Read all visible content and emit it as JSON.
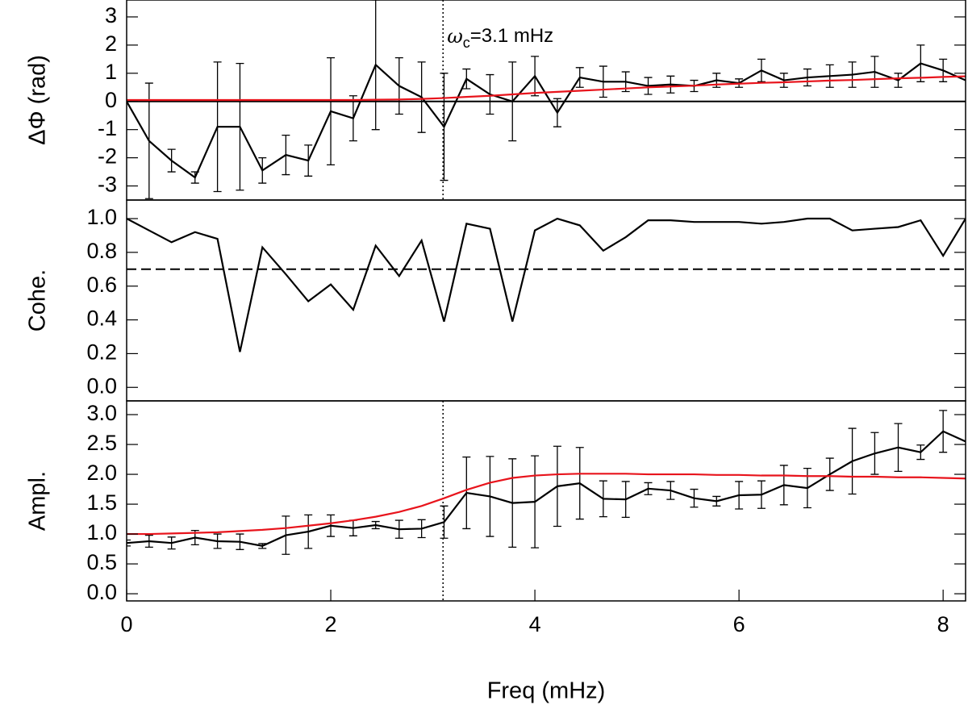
{
  "chart_data": [
    {
      "type": "line",
      "ylabel": "ΔΦ (rad)",
      "xlim": [
        0,
        8.22
      ],
      "ylim": [
        -3.5,
        3.6
      ],
      "yticks": [
        -3,
        -2,
        -1,
        0,
        1,
        2,
        3
      ],
      "hline": {
        "value": 0,
        "style": "solid"
      },
      "vline": 3.1,
      "annotation": {
        "symbol": "ω",
        "sub": "c",
        "text": "=3.1 mHz",
        "x": 3.1
      },
      "x": [
        0,
        0.22,
        0.44,
        0.67,
        0.89,
        1.11,
        1.33,
        1.56,
        1.78,
        2.0,
        2.22,
        2.44,
        2.67,
        2.89,
        3.11,
        3.33,
        3.56,
        3.78,
        4.0,
        4.22,
        4.44,
        4.67,
        4.89,
        5.11,
        5.33,
        5.56,
        5.78,
        6.0,
        6.22,
        6.44,
        6.67,
        6.89,
        7.11,
        7.33,
        7.56,
        7.78,
        8.0,
        8.22
      ],
      "series": [
        {
          "color": "#000000",
          "values": [
            0,
            -1.4,
            -2.1,
            -2.7,
            -0.9,
            -0.9,
            -2.45,
            -1.9,
            -2.1,
            -0.35,
            -0.6,
            1.3,
            0.55,
            0.15,
            -0.9,
            0.8,
            0.25,
            0,
            0.9,
            -0.4,
            0.85,
            0.7,
            0.7,
            0.55,
            0.6,
            0.55,
            0.75,
            0.65,
            1.1,
            0.75,
            0.85,
            0.9,
            0.95,
            1.05,
            0.75,
            1.35,
            1.1,
            0.75
          ],
          "errors": [
            null,
            2.05,
            0.4,
            0.2,
            2.3,
            2.25,
            0.45,
            0.7,
            0.55,
            1.9,
            0.8,
            2.3,
            1.0,
            1.25,
            1.9,
            0.35,
            0.7,
            1.4,
            0.7,
            0.5,
            0.35,
            0.55,
            0.35,
            0.3,
            0.3,
            0.2,
            0.25,
            0.15,
            0.4,
            0.25,
            0.3,
            0.4,
            0.45,
            0.55,
            0.25,
            0.65,
            0.4,
            null
          ]
        },
        {
          "color": "#e8141c",
          "values": [
            0.05,
            0.05,
            0.05,
            0.05,
            0.05,
            0.05,
            0.05,
            0.05,
            0.05,
            0.05,
            0.05,
            0.06,
            0.07,
            0.09,
            0.12,
            0.16,
            0.2,
            0.25,
            0.3,
            0.34,
            0.38,
            0.42,
            0.46,
            0.5,
            0.53,
            0.56,
            0.6,
            0.63,
            0.66,
            0.68,
            0.71,
            0.74,
            0.76,
            0.79,
            0.82,
            0.84,
            0.87,
            0.89
          ]
        }
      ]
    },
    {
      "type": "line",
      "ylabel": "Cohe.",
      "xlim": [
        0,
        8.22
      ],
      "ylim": [
        -0.08,
        1.11
      ],
      "yticks": [
        {
          "value": 0,
          "label": "0.0"
        },
        0.2,
        0.4,
        0.6,
        0.8,
        {
          "value": 1,
          "label": "1.0"
        }
      ],
      "hline": {
        "value": 0.7,
        "style": "dashed"
      },
      "x": [
        0,
        0.22,
        0.44,
        0.67,
        0.89,
        1.11,
        1.33,
        1.56,
        1.78,
        2.0,
        2.22,
        2.44,
        2.67,
        2.89,
        3.11,
        3.33,
        3.56,
        3.78,
        4.0,
        4.22,
        4.44,
        4.67,
        4.89,
        5.11,
        5.33,
        5.56,
        5.78,
        6.0,
        6.22,
        6.44,
        6.67,
        6.89,
        7.11,
        7.33,
        7.56,
        7.78,
        8.0,
        8.22
      ],
      "series": [
        {
          "color": "#000000",
          "values": [
            1.0,
            0.93,
            0.86,
            0.92,
            0.88,
            0.21,
            0.83,
            0.67,
            0.51,
            0.61,
            0.46,
            0.84,
            0.66,
            0.87,
            0.39,
            0.97,
            0.94,
            0.39,
            0.93,
            1.0,
            0.96,
            0.81,
            0.89,
            0.99,
            0.99,
            0.98,
            0.98,
            0.98,
            0.97,
            0.98,
            1.0,
            1.0,
            0.93,
            0.94,
            0.95,
            0.99,
            0.78,
            1.0
          ]
        }
      ]
    },
    {
      "type": "line",
      "ylabel": "Ampl.",
      "xlabel": "Freq (mHz)",
      "xlim": [
        0,
        8.22
      ],
      "xticks": [
        0,
        2,
        4,
        6,
        8
      ],
      "ylim": [
        -0.12,
        3.23
      ],
      "yticks": [
        {
          "value": 0,
          "label": "0.0"
        },
        0.5,
        {
          "value": 1,
          "label": "1.0"
        },
        1.5,
        {
          "value": 2,
          "label": "2.0"
        },
        2.5,
        {
          "value": 3,
          "label": "3.0"
        }
      ],
      "vline": 3.1,
      "x": [
        0,
        0.22,
        0.44,
        0.67,
        0.89,
        1.11,
        1.33,
        1.56,
        1.78,
        2.0,
        2.22,
        2.44,
        2.67,
        2.89,
        3.11,
        3.33,
        3.56,
        3.78,
        4.0,
        4.22,
        4.44,
        4.67,
        4.89,
        5.11,
        5.33,
        5.56,
        5.78,
        6.0,
        6.22,
        6.44,
        6.67,
        6.89,
        7.11,
        7.33,
        7.56,
        7.78,
        8.0,
        8.22
      ],
      "series": [
        {
          "color": "#000000",
          "values": [
            0.85,
            0.88,
            0.85,
            0.94,
            0.88,
            0.87,
            0.8,
            0.98,
            1.04,
            1.14,
            1.1,
            1.15,
            1.08,
            1.09,
            1.2,
            1.69,
            1.63,
            1.52,
            1.54,
            1.8,
            1.85,
            1.59,
            1.58,
            1.76,
            1.73,
            1.6,
            1.55,
            1.65,
            1.66,
            1.82,
            1.77,
            2.0,
            2.22,
            2.35,
            2.45,
            2.37,
            2.72,
            2.55
          ],
          "errors": [
            0.05,
            0.1,
            0.1,
            0.12,
            0.12,
            0.13,
            0.04,
            0.32,
            0.28,
            0.18,
            0.13,
            0.06,
            0.15,
            0.15,
            0.27,
            0.6,
            0.67,
            0.74,
            0.77,
            0.67,
            0.6,
            0.3,
            0.3,
            0.1,
            0.15,
            0.15,
            0.08,
            0.23,
            0.23,
            0.33,
            0.33,
            0.27,
            0.55,
            0.35,
            0.4,
            0.12,
            0.35,
            null
          ]
        },
        {
          "color": "#e8141c",
          "values": [
            1.0,
            1.0,
            1.01,
            1.02,
            1.03,
            1.05,
            1.07,
            1.1,
            1.14,
            1.18,
            1.23,
            1.29,
            1.37,
            1.47,
            1.6,
            1.74,
            1.86,
            1.94,
            1.98,
            2.0,
            2.01,
            2.01,
            2.01,
            2.0,
            2.0,
            2.0,
            1.99,
            1.99,
            1.98,
            1.98,
            1.97,
            1.97,
            1.96,
            1.96,
            1.95,
            1.95,
            1.94,
            1.93
          ]
        }
      ]
    }
  ]
}
